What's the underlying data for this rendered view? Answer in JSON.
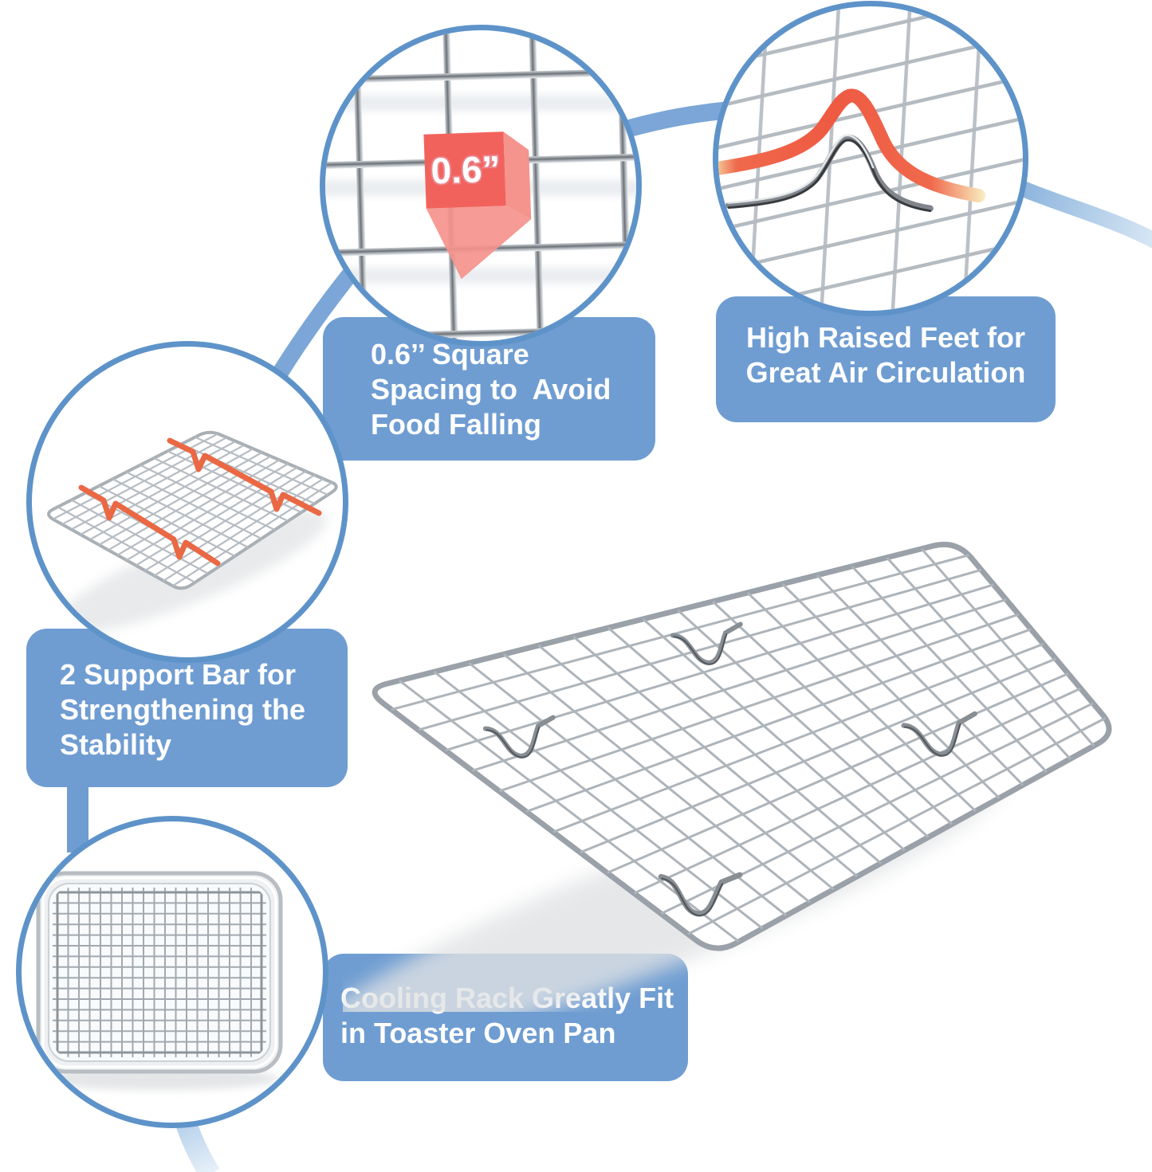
{
  "palette": {
    "box_blue": "#6f9dd2",
    "circle_border_blue": "#5e93c9",
    "arc_blue": "#7ba6d7",
    "arc_blue_light": "#dcebf7",
    "highlight_red": "#ee5b42",
    "highlight_yellow_fade": "#f6efb9",
    "cube_red": "#f2625c",
    "cube_red_light": "#f5928c",
    "orange_bar": "#e96a43",
    "wire_gray": "#aab1b8",
    "text_white": "#ffffff"
  },
  "callouts": {
    "square_spacing": {
      "lines": [
        "0.6’’ Square",
        "Spacing to  Avoid",
        "Food Falling"
      ]
    },
    "raised_feet": {
      "lines": [
        "High Raised Feet for",
        "Great Air Circulation"
      ]
    },
    "support_bar": {
      "lines": [
        "2 Support Bar for",
        "Strengthening the",
        "Stability"
      ]
    },
    "cooling_rack": {
      "lines": [
        "Cooling Rack Greatly Fit",
        "in Toaster Oven Pan"
      ]
    }
  },
  "labels": {
    "cube_size": "0.6”"
  }
}
